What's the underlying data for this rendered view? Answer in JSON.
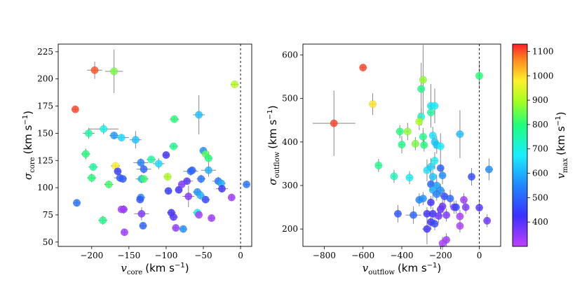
{
  "chart_data": [
    {
      "type": "scatter",
      "xlabel": {
        "symbol": "v",
        "sub": "core",
        "unit": "(km s",
        "sup": "−1",
        "close": ")"
      },
      "ylabel": {
        "symbol": "σ",
        "sub": "core",
        "unit": "(km s",
        "sup": "−1",
        "close": ")"
      },
      "xlim": [
        -245,
        15
      ],
      "ylim": [
        46,
        232
      ],
      "xticks": [
        -200,
        -150,
        -100,
        -50,
        0
      ],
      "yticks": [
        50,
        75,
        100,
        125,
        150,
        175,
        200,
        225
      ],
      "xtick_labels": [
        "−200",
        "−150",
        "−100",
        "−50",
        "0"
      ],
      "ytick_labels": [
        "50",
        "75",
        "100",
        "125",
        "150",
        "175",
        "200",
        "225"
      ],
      "reference_line_x": 0,
      "points": [
        {
          "x": -222,
          "y": 172,
          "c": 1110,
          "xerr": 4,
          "yerr": 2
        },
        {
          "x": -196,
          "y": 208,
          "c": 1100,
          "xerr": 10,
          "yerr": 8
        },
        {
          "x": -170,
          "y": 207,
          "c": 860,
          "xerr": 12,
          "yerr": 20
        },
        {
          "x": -8,
          "y": 195,
          "c": 910,
          "xerr": 5,
          "yerr": 2
        },
        {
          "x": -56,
          "y": 167,
          "c": 620,
          "xerr": 8,
          "yerr": 18
        },
        {
          "x": -89,
          "y": 163,
          "c": 800,
          "xerr": 6,
          "yerr": 2
        },
        {
          "x": -184,
          "y": 154,
          "c": 700,
          "xerr": 20,
          "yerr": 5
        },
        {
          "x": -204,
          "y": 150,
          "c": 760,
          "xerr": 8,
          "yerr": 5
        },
        {
          "x": -170,
          "y": 148,
          "c": 570,
          "xerr": 6,
          "yerr": 3
        },
        {
          "x": -160,
          "y": 146,
          "c": 650,
          "xerr": 10,
          "yerr": 3
        },
        {
          "x": -141,
          "y": 144,
          "c": 620,
          "xerr": 8,
          "yerr": 8
        },
        {
          "x": -90,
          "y": 138,
          "c": 780,
          "xerr": 6,
          "yerr": 2
        },
        {
          "x": -50,
          "y": 134,
          "c": 560,
          "xerr": 5,
          "yerr": 3
        },
        {
          "x": -47,
          "y": 131,
          "c": 840,
          "xerr": 4,
          "yerr": 3
        },
        {
          "x": -43,
          "y": 127,
          "c": 800,
          "xerr": 5,
          "yerr": 6
        },
        {
          "x": -100,
          "y": 130,
          "c": 420,
          "xerr": 4,
          "yerr": 2
        },
        {
          "x": -120,
          "y": 126,
          "c": 760,
          "xerr": 6,
          "yerr": 2
        },
        {
          "x": -110,
          "y": 122,
          "c": 650,
          "xerr": 8,
          "yerr": 5
        },
        {
          "x": -208,
          "y": 131,
          "c": 800,
          "xerr": 6,
          "yerr": 5
        },
        {
          "x": -198,
          "y": 119,
          "c": 760,
          "xerr": 6,
          "yerr": 3
        },
        {
          "x": -134,
          "y": 123,
          "c": 540,
          "xerr": 10,
          "yerr": 4
        },
        {
          "x": -130,
          "y": 117,
          "c": 500,
          "xerr": 10,
          "yerr": 4
        },
        {
          "x": -168,
          "y": 120,
          "c": 980,
          "xerr": 6,
          "yerr": 3
        },
        {
          "x": -165,
          "y": 115,
          "c": 440,
          "xerr": 4,
          "yerr": 3
        },
        {
          "x": -162,
          "y": 109,
          "c": 480,
          "xerr": 8,
          "yerr": 4
        },
        {
          "x": -158,
          "y": 108,
          "c": 490,
          "xerr": 5,
          "yerr": 3
        },
        {
          "x": -200,
          "y": 109,
          "c": 800,
          "xerr": 6,
          "yerr": 4
        },
        {
          "x": -177,
          "y": 103,
          "c": 820,
          "xerr": 6,
          "yerr": 3
        },
        {
          "x": -133,
          "y": 108,
          "c": 600,
          "xerr": 8,
          "yerr": 4
        },
        {
          "x": -130,
          "y": 108,
          "c": 820,
          "xerr": 6,
          "yerr": 3
        },
        {
          "x": -98,
          "y": 110,
          "c": 900,
          "xerr": 5,
          "yerr": 3
        },
        {
          "x": -67,
          "y": 115,
          "c": 520,
          "xerr": 10,
          "yerr": 4
        },
        {
          "x": -65,
          "y": 116,
          "c": 500,
          "xerr": 6,
          "yerr": 3
        },
        {
          "x": -43,
          "y": 116,
          "c": 600,
          "xerr": 10,
          "yerr": 6
        },
        {
          "x": -30,
          "y": 106,
          "c": 520,
          "xerr": 8,
          "yerr": 4
        },
        {
          "x": -53,
          "y": 108,
          "c": 520,
          "xerr": 6,
          "yerr": 4
        },
        {
          "x": -72,
          "y": 106,
          "c": 400,
          "xerr": 8,
          "yerr": 3
        },
        {
          "x": -26,
          "y": 104,
          "c": 600,
          "xerr": 6,
          "yerr": 3
        },
        {
          "x": 8,
          "y": 103,
          "c": 520,
          "xerr": 4,
          "yerr": 2
        },
        {
          "x": -25,
          "y": 99,
          "c": 420,
          "xerr": 8,
          "yerr": 3
        },
        {
          "x": -97,
          "y": 97,
          "c": 440,
          "xerr": 5,
          "yerr": 3
        },
        {
          "x": -83,
          "y": 98,
          "c": 420,
          "xerr": 5,
          "yerr": 3
        },
        {
          "x": -79,
          "y": 103,
          "c": 360,
          "xerr": 4,
          "yerr": 2
        },
        {
          "x": -58,
          "y": 96,
          "c": 560,
          "xerr": 6,
          "yerr": 3
        },
        {
          "x": -54,
          "y": 93,
          "c": 600,
          "xerr": 6,
          "yerr": 4
        },
        {
          "x": -47,
          "y": 89,
          "c": 460,
          "xerr": 6,
          "yerr": 3
        },
        {
          "x": -70,
          "y": 92,
          "c": 360,
          "xerr": 8,
          "yerr": 10
        },
        {
          "x": -12,
          "y": 91,
          "c": 330,
          "xerr": 4,
          "yerr": 3
        },
        {
          "x": -220,
          "y": 86,
          "c": 520,
          "xerr": 5,
          "yerr": 3
        },
        {
          "x": -134,
          "y": 91,
          "c": 560,
          "xerr": 6,
          "yerr": 3
        },
        {
          "x": -135,
          "y": 89,
          "c": 480,
          "xerr": 5,
          "yerr": 3
        },
        {
          "x": -157,
          "y": 80,
          "c": 360,
          "xerr": 5,
          "yerr": 4
        },
        {
          "x": -160,
          "y": 80,
          "c": 320,
          "xerr": 4,
          "yerr": 3
        },
        {
          "x": -133,
          "y": 76,
          "c": 360,
          "xerr": 10,
          "yerr": 6
        },
        {
          "x": -93,
          "y": 77,
          "c": 420,
          "xerr": 6,
          "yerr": 3
        },
        {
          "x": -90,
          "y": 73,
          "c": 400,
          "xerr": 6,
          "yerr": 3
        },
        {
          "x": -58,
          "y": 77,
          "c": 700,
          "xerr": 6,
          "yerr": 3
        },
        {
          "x": -56,
          "y": 75,
          "c": 320,
          "xerr": 4,
          "yerr": 3
        },
        {
          "x": -39,
          "y": 72,
          "c": 330,
          "xerr": 4,
          "yerr": 3
        },
        {
          "x": -185,
          "y": 70,
          "c": 780,
          "xerr": 6,
          "yerr": 4
        },
        {
          "x": -131,
          "y": 65,
          "c": 500,
          "xerr": 5,
          "yerr": 3
        },
        {
          "x": -87,
          "y": 63,
          "c": 340,
          "xerr": 4,
          "yerr": 3
        },
        {
          "x": -77,
          "y": 62,
          "c": 560,
          "xerr": 5,
          "yerr": 3
        },
        {
          "x": -156,
          "y": 59,
          "c": 330,
          "xerr": 4,
          "yerr": 3
        }
      ]
    },
    {
      "type": "scatter",
      "xlabel": {
        "symbol": "v",
        "sub": "outflow",
        "unit": "(km s",
        "sup": "−1",
        "close": ")"
      },
      "ylabel": {
        "symbol": "σ",
        "sub": "outflow",
        "unit": "(km s",
        "sup": "−1",
        "close": ")"
      },
      "xlim": [
        -910,
        110
      ],
      "ylim": [
        160,
        625
      ],
      "xticks": [
        -800,
        -600,
        -400,
        -200,
        0
      ],
      "yticks": [
        200,
        300,
        400,
        500,
        600
      ],
      "xtick_labels": [
        "−800",
        "−600",
        "−400",
        "−200",
        "0"
      ],
      "ytick_labels": [
        "200",
        "300",
        "400",
        "500",
        "600"
      ],
      "reference_line_x": 0,
      "points": [
        {
          "x": -600,
          "y": 571,
          "c": 1110,
          "xerr": 10,
          "yerr": 5
        },
        {
          "x": 0,
          "y": 552,
          "c": 800,
          "xerr": 10,
          "yerr": 30
        },
        {
          "x": -290,
          "y": 543,
          "c": 880,
          "xerr": 10,
          "yerr": 80
        },
        {
          "x": -300,
          "y": 522,
          "c": 780,
          "xerr": 10,
          "yerr": 60
        },
        {
          "x": -550,
          "y": 487,
          "c": 990,
          "xerr": 15,
          "yerr": 25
        },
        {
          "x": -250,
          "y": 483,
          "c": 660,
          "xerr": 15,
          "yerr": 50
        },
        {
          "x": -230,
          "y": 483,
          "c": 680,
          "xerr": 15,
          "yerr": 40
        },
        {
          "x": -250,
          "y": 468,
          "c": 760,
          "xerr": 10,
          "yerr": 30
        },
        {
          "x": -300,
          "y": 458,
          "c": 720,
          "xerr": 10,
          "yerr": 20
        },
        {
          "x": -310,
          "y": 447,
          "c": 900,
          "xerr": 10,
          "yerr": 20
        },
        {
          "x": -750,
          "y": 443,
          "c": 1110,
          "xerr": 110,
          "yerr": 75
        },
        {
          "x": -410,
          "y": 424,
          "c": 800,
          "xerr": 10,
          "yerr": 15
        },
        {
          "x": -370,
          "y": 424,
          "c": 880,
          "xerr": 10,
          "yerr": 20
        },
        {
          "x": -240,
          "y": 415,
          "c": 660,
          "xerr": 10,
          "yerr": 20
        },
        {
          "x": -290,
          "y": 412,
          "c": 780,
          "xerr": 10,
          "yerr": 20
        },
        {
          "x": -100,
          "y": 418,
          "c": 620,
          "xerr": 20,
          "yerr": 55
        },
        {
          "x": -230,
          "y": 400,
          "c": 640,
          "xerr": 10,
          "yerr": 15
        },
        {
          "x": -400,
          "y": 394,
          "c": 780,
          "xerr": 15,
          "yerr": 20
        },
        {
          "x": -330,
          "y": 396,
          "c": 860,
          "xerr": 10,
          "yerr": 15
        },
        {
          "x": -285,
          "y": 393,
          "c": 800,
          "xerr": 10,
          "yerr": 15
        },
        {
          "x": -220,
          "y": 393,
          "c": 620,
          "xerr": 10,
          "yerr": 20
        },
        {
          "x": -200,
          "y": 390,
          "c": 680,
          "xerr": 15,
          "yerr": 30
        },
        {
          "x": -520,
          "y": 346,
          "c": 780,
          "xerr": 15,
          "yerr": 15
        },
        {
          "x": -230,
          "y": 357,
          "c": 680,
          "xerr": 15,
          "yerr": 20
        },
        {
          "x": -270,
          "y": 335,
          "c": 660,
          "xerr": 15,
          "yerr": 25
        },
        {
          "x": -200,
          "y": 340,
          "c": 500,
          "xerr": 15,
          "yerr": 20
        },
        {
          "x": -250,
          "y": 343,
          "c": 640,
          "xerr": 15,
          "yerr": 20
        },
        {
          "x": -440,
          "y": 321,
          "c": 740,
          "xerr": 10,
          "yerr": 15
        },
        {
          "x": -360,
          "y": 318,
          "c": 680,
          "xerr": 15,
          "yerr": 15
        },
        {
          "x": -240,
          "y": 320,
          "c": 620,
          "xerr": 10,
          "yerr": 15
        },
        {
          "x": -190,
          "y": 323,
          "c": 560,
          "xerr": 15,
          "yerr": 20
        },
        {
          "x": 50,
          "y": 337,
          "c": 560,
          "xerr": 20,
          "yerr": 25
        },
        {
          "x": -40,
          "y": 320,
          "c": 460,
          "xerr": 10,
          "yerr": 20
        },
        {
          "x": -250,
          "y": 303,
          "c": 500,
          "xerr": 10,
          "yerr": 15
        },
        {
          "x": -220,
          "y": 300,
          "c": 580,
          "xerr": 15,
          "yerr": 25
        },
        {
          "x": -240,
          "y": 290,
          "c": 600,
          "xerr": 15,
          "yerr": 20
        },
        {
          "x": -200,
          "y": 289,
          "c": 560,
          "xerr": 15,
          "yerr": 15
        },
        {
          "x": -220,
          "y": 280,
          "c": 540,
          "xerr": 15,
          "yerr": 15
        },
        {
          "x": -180,
          "y": 275,
          "c": 460,
          "xerr": 15,
          "yerr": 15
        },
        {
          "x": -310,
          "y": 267,
          "c": 540,
          "xerr": 10,
          "yerr": 15
        },
        {
          "x": -290,
          "y": 270,
          "c": 560,
          "xerr": 10,
          "yerr": 15
        },
        {
          "x": -150,
          "y": 270,
          "c": 500,
          "xerr": 10,
          "yerr": 20
        },
        {
          "x": -80,
          "y": 267,
          "c": 330,
          "xerr": 10,
          "yerr": 15
        },
        {
          "x": -250,
          "y": 261,
          "c": 420,
          "xerr": 10,
          "yerr": 15
        },
        {
          "x": -190,
          "y": 252,
          "c": 380,
          "xerr": 15,
          "yerr": 15
        },
        {
          "x": -130,
          "y": 250,
          "c": 360,
          "xerr": 10,
          "yerr": 15
        },
        {
          "x": -120,
          "y": 250,
          "c": 460,
          "xerr": 10,
          "yerr": 15
        },
        {
          "x": -70,
          "y": 250,
          "c": 360,
          "xerr": 10,
          "yerr": 15
        },
        {
          "x": 0,
          "y": 249,
          "c": 400,
          "xerr": 10,
          "yerr": 15
        },
        {
          "x": -200,
          "y": 245,
          "c": 380,
          "xerr": 15,
          "yerr": 15
        },
        {
          "x": -420,
          "y": 235,
          "c": 480,
          "xerr": 20,
          "yerr": 20
        },
        {
          "x": -340,
          "y": 232,
          "c": 500,
          "xerr": 40,
          "yerr": 20
        },
        {
          "x": -270,
          "y": 235,
          "c": 420,
          "xerr": 15,
          "yerr": 15
        },
        {
          "x": -240,
          "y": 235,
          "c": 420,
          "xerr": 20,
          "yerr": 15
        },
        {
          "x": -210,
          "y": 230,
          "c": 380,
          "xerr": 15,
          "yerr": 15
        },
        {
          "x": -170,
          "y": 232,
          "c": 360,
          "xerr": 15,
          "yerr": 15
        },
        {
          "x": -100,
          "y": 229,
          "c": 320,
          "xerr": 10,
          "yerr": 15
        },
        {
          "x": -250,
          "y": 216,
          "c": 420,
          "xerr": 20,
          "yerr": 15
        },
        {
          "x": -230,
          "y": 212,
          "c": 460,
          "xerr": 15,
          "yerr": 15
        },
        {
          "x": 40,
          "y": 219,
          "c": 380,
          "xerr": 10,
          "yerr": 15
        },
        {
          "x": -100,
          "y": 207,
          "c": 320,
          "xerr": 10,
          "yerr": 15
        },
        {
          "x": -270,
          "y": 200,
          "c": 420,
          "xerr": 25,
          "yerr": 35
        },
        {
          "x": -170,
          "y": 175,
          "c": 330,
          "xerr": 10,
          "yerr": 15
        },
        {
          "x": -190,
          "y": 167,
          "c": 320,
          "xerr": 10,
          "yerr": 15
        }
      ]
    }
  ],
  "colorbar": {
    "label": {
      "symbol": "v",
      "sub": "max",
      "unit": "(km s",
      "sup": "−1",
      "close": ")"
    },
    "range": [
      300,
      1130
    ],
    "ticks": [
      400,
      500,
      600,
      700,
      800,
      900,
      1000,
      1100
    ],
    "tick_labels": [
      "400",
      "500",
      "600",
      "700",
      "800",
      "900",
      "1000",
      "1100"
    ],
    "colormap": "gist_rainbow_r"
  }
}
